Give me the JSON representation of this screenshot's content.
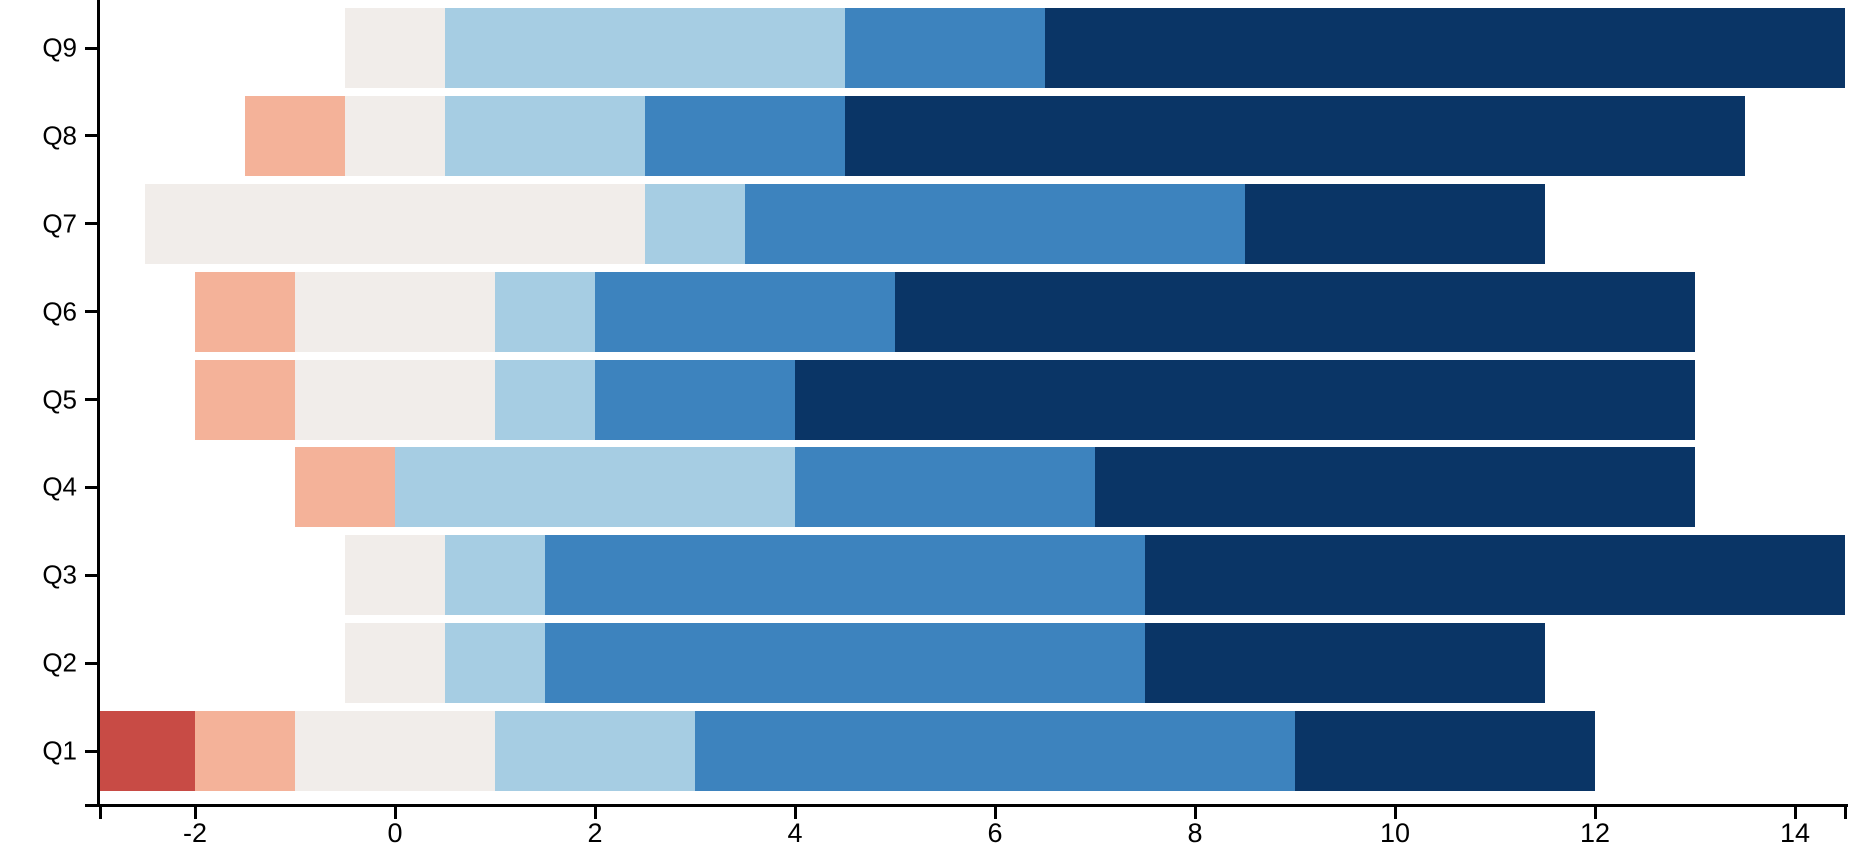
{
  "chart_data": {
    "type": "bar",
    "subtype": "diverging_stacked_horizontal",
    "title": "",
    "xlabel": "",
    "ylabel": "",
    "grid": false,
    "legend_position": "none",
    "x_domain": [
      -2.95,
      14.5
    ],
    "x_ticks": [
      -2,
      0,
      2,
      4,
      6,
      8,
      10,
      12,
      14
    ],
    "series_order": [
      "neg_strong",
      "neg",
      "neutral",
      "pos_low",
      "pos_mid",
      "pos_high"
    ],
    "series_colors": {
      "neg_strong": "#c84b45",
      "neg": "#f4b299",
      "neutral": "#f1edea",
      "pos_low": "#a6cde3",
      "pos_mid": "#3d83be",
      "pos_high": "#0a3566"
    },
    "axis_color": "#000000",
    "rows": [
      {
        "label": "Q9",
        "segments": [
          {
            "series": "neutral",
            "from": -0.5,
            "to": 0.5
          },
          {
            "series": "pos_low",
            "from": 0.5,
            "to": 4.5
          },
          {
            "series": "pos_mid",
            "from": 4.5,
            "to": 6.5
          },
          {
            "series": "pos_high",
            "from": 6.5,
            "to": 14.5
          }
        ]
      },
      {
        "label": "Q8",
        "segments": [
          {
            "series": "neg",
            "from": -1.5,
            "to": -0.5
          },
          {
            "series": "neutral",
            "from": -0.5,
            "to": 0.5
          },
          {
            "series": "pos_low",
            "from": 0.5,
            "to": 2.5
          },
          {
            "series": "pos_mid",
            "from": 2.5,
            "to": 4.5
          },
          {
            "series": "pos_high",
            "from": 4.5,
            "to": 13.5
          }
        ]
      },
      {
        "label": "Q7",
        "segments": [
          {
            "series": "neutral",
            "from": -2.5,
            "to": 2.5
          },
          {
            "series": "pos_low",
            "from": 2.5,
            "to": 3.5
          },
          {
            "series": "pos_mid",
            "from": 3.5,
            "to": 8.5
          },
          {
            "series": "pos_high",
            "from": 8.5,
            "to": 11.5
          }
        ]
      },
      {
        "label": "Q6",
        "segments": [
          {
            "series": "neg",
            "from": -2,
            "to": -1
          },
          {
            "series": "neutral",
            "from": -1,
            "to": 1
          },
          {
            "series": "pos_low",
            "from": 1,
            "to": 2
          },
          {
            "series": "pos_mid",
            "from": 2,
            "to": 5
          },
          {
            "series": "pos_high",
            "from": 5,
            "to": 13
          }
        ]
      },
      {
        "label": "Q5",
        "segments": [
          {
            "series": "neg",
            "from": -2,
            "to": -1
          },
          {
            "series": "neutral",
            "from": -1,
            "to": 1
          },
          {
            "series": "pos_low",
            "from": 1,
            "to": 2
          },
          {
            "series": "pos_mid",
            "from": 2,
            "to": 4
          },
          {
            "series": "pos_high",
            "from": 4,
            "to": 13
          }
        ]
      },
      {
        "label": "Q4",
        "segments": [
          {
            "series": "neg",
            "from": -1,
            "to": 0
          },
          {
            "series": "pos_low",
            "from": 0,
            "to": 4
          },
          {
            "series": "pos_mid",
            "from": 4,
            "to": 7
          },
          {
            "series": "pos_high",
            "from": 7,
            "to": 13
          }
        ]
      },
      {
        "label": "Q3",
        "segments": [
          {
            "series": "neutral",
            "from": -0.5,
            "to": 0.5
          },
          {
            "series": "pos_low",
            "from": 0.5,
            "to": 1.5
          },
          {
            "series": "pos_mid",
            "from": 1.5,
            "to": 7.5
          },
          {
            "series": "pos_high",
            "from": 7.5,
            "to": 14.5
          }
        ]
      },
      {
        "label": "Q2",
        "segments": [
          {
            "series": "neutral",
            "from": -0.5,
            "to": 0.5
          },
          {
            "series": "pos_low",
            "from": 0.5,
            "to": 1.5
          },
          {
            "series": "pos_mid",
            "from": 1.5,
            "to": 7.5
          },
          {
            "series": "pos_high",
            "from": 7.5,
            "to": 11.5
          }
        ]
      },
      {
        "label": "Q1",
        "segments": [
          {
            "series": "neg_strong",
            "from": -3,
            "to": -2
          },
          {
            "series": "neg",
            "from": -2,
            "to": -1
          },
          {
            "series": "neutral",
            "from": -1,
            "to": 1
          },
          {
            "series": "pos_low",
            "from": 1,
            "to": 3
          },
          {
            "series": "pos_mid",
            "from": 3,
            "to": 9
          },
          {
            "series": "pos_high",
            "from": 9,
            "to": 12
          }
        ]
      }
    ]
  }
}
